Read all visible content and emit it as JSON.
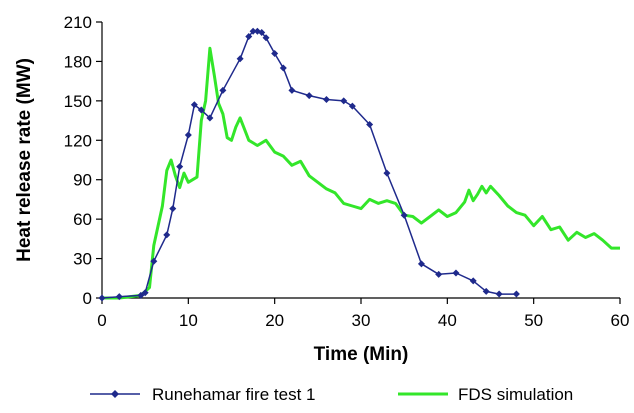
{
  "chart_data": {
    "type": "line",
    "title": "",
    "xlabel": "Time (Min)",
    "ylabel": "Heat release rate (MW)",
    "xlim": [
      0,
      60
    ],
    "ylim": [
      0,
      210
    ],
    "x_ticks": [
      0,
      10,
      20,
      30,
      40,
      50,
      60
    ],
    "y_ticks": [
      0,
      30,
      60,
      90,
      120,
      150,
      180,
      210
    ],
    "grid": false,
    "legend_position": "bottom",
    "series": [
      {
        "name": "Runehamar fire test 1",
        "color": "#1f2a8c",
        "marker": "diamond",
        "x": [
          0,
          2,
          4.5,
          5,
          6,
          7.5,
          8.2,
          9,
          10,
          10.7,
          11.5,
          12.5,
          14,
          16,
          17,
          17.5,
          18,
          18.5,
          19,
          20,
          21,
          22,
          24,
          26,
          28,
          29,
          31,
          33,
          35,
          37,
          39,
          41,
          43,
          44.5,
          46,
          48
        ],
        "y": [
          0,
          1,
          2,
          4,
          28,
          48,
          68,
          100,
          124,
          147,
          143,
          137,
          158,
          182,
          199,
          203,
          203,
          202,
          198,
          186,
          175,
          158,
          154,
          151,
          150,
          146,
          132,
          95,
          63,
          26,
          18,
          19,
          13,
          5,
          3,
          3
        ]
      },
      {
        "name": "FDS simulation",
        "color": "#33e62a",
        "marker": "none",
        "x": [
          0,
          2,
          4.5,
          5.5,
          6,
          7,
          7.5,
          8,
          8.5,
          9,
          9.5,
          10,
          11,
          11.5,
          12,
          12.5,
          13,
          13.5,
          14,
          14.5,
          15,
          15.5,
          16,
          17,
          17.5,
          18,
          19,
          20,
          21,
          22,
          23,
          24,
          25,
          26,
          27,
          28,
          29,
          30,
          31,
          32,
          33,
          34,
          35,
          36,
          37,
          38,
          39,
          40,
          41,
          42,
          42.5,
          43,
          43.5,
          44,
          44.5,
          45,
          46,
          47,
          48,
          49,
          50,
          51,
          52,
          53,
          54,
          55,
          56,
          57,
          58,
          59,
          60
        ],
        "y": [
          0,
          0,
          2,
          8,
          40,
          70,
          97,
          105,
          93,
          84,
          95,
          88,
          92,
          135,
          150,
          190,
          170,
          148,
          140,
          122,
          120,
          130,
          137,
          120,
          118,
          116,
          120,
          111,
          108,
          101,
          104,
          93,
          88,
          83,
          80,
          72,
          70,
          68,
          75,
          72,
          74,
          72,
          63,
          62,
          57,
          62,
          67,
          62,
          65,
          73,
          82,
          74,
          79,
          85,
          80,
          85,
          78,
          70,
          65,
          63,
          55,
          62,
          52,
          54,
          44,
          50,
          46,
          49,
          44,
          38,
          38
        ]
      }
    ]
  }
}
